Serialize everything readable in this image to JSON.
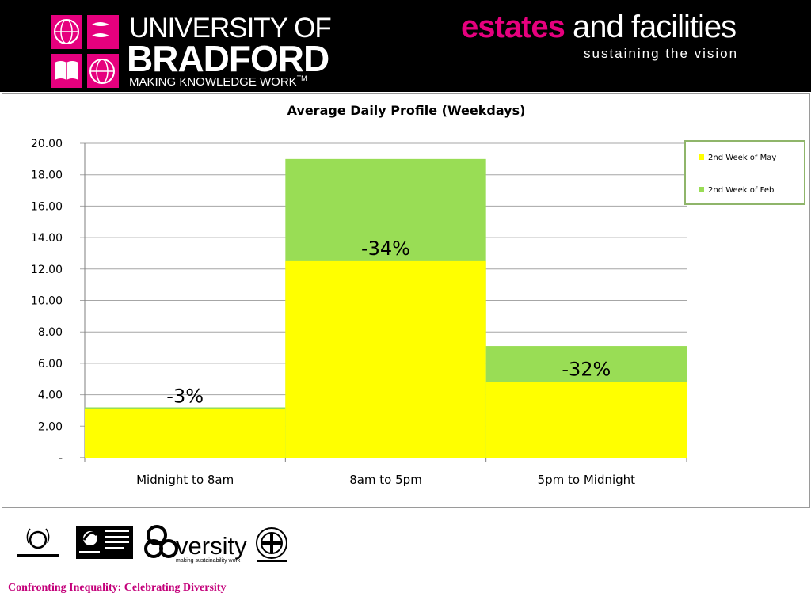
{
  "header": {
    "university_line1": "UNIVERSITY OF",
    "university_line2": "BRADFORD",
    "university_line3": "MAKING KNOWLEDGE WORK",
    "trademark": "TM",
    "estates_word": "estates",
    "facilities_words": " and facilities",
    "tagline": "sustaining the vision",
    "brand_color": "#e6007e"
  },
  "chart_data": {
    "type": "bar",
    "title": "Average Daily Profile (Weekdays)",
    "categories": [
      "Midnight to 8am",
      "8am to 5pm",
      "5pm to Midnight"
    ],
    "series": [
      {
        "name": "2nd Week of May",
        "color": "#ffff00",
        "values": [
          3.1,
          12.5,
          4.8
        ]
      },
      {
        "name": "2nd Week of Feb",
        "color": "#99dd55",
        "values": [
          3.2,
          19.0,
          7.1
        ]
      }
    ],
    "ylim": [
      0,
      20
    ],
    "yticks": [
      0,
      2,
      4,
      6,
      8,
      10,
      12,
      14,
      16,
      18,
      20
    ],
    "ytick_labels": [
      "-",
      "2.00",
      "4.00",
      "6.00",
      "8.00",
      "10.00",
      "12.00",
      "14.00",
      "16.00",
      "18.00",
      "20.00"
    ],
    "annotations": [
      "-3%",
      "-34%",
      "-32%"
    ],
    "grid": true,
    "legend": "top-right",
    "xlabel": "",
    "ylabel": ""
  },
  "footer": {
    "logos": [
      "investors-in-people-logo",
      "fairtrade-logo",
      "ecoversity-logo",
      "the-fair-and-bottle-trust-logo"
    ],
    "ecoversity_text": "versity",
    "ecoversity_sub": "making sustainability work",
    "caption": "Confronting  Inequality: Celebrating Diversity"
  }
}
